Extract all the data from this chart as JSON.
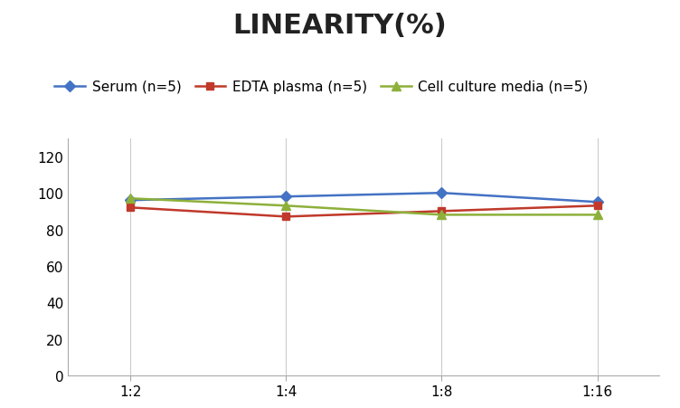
{
  "title": "LINEARITY(%)",
  "x_labels": [
    "1:2",
    "1:4",
    "1:8",
    "1:16"
  ],
  "series": [
    {
      "label": "Serum (n=5)",
      "values": [
        96,
        98,
        100,
        95
      ],
      "color": "#4472C4",
      "marker": "D",
      "markersize": 6
    },
    {
      "label": "EDTA plasma (n=5)",
      "values": [
        92,
        87,
        90,
        93
      ],
      "color": "#C0392B",
      "marker": "s",
      "markersize": 6
    },
    {
      "label": "Cell culture media (n=5)",
      "values": [
        97,
        93,
        88,
        88
      ],
      "color": "#8DB03A",
      "marker": "^",
      "markersize": 7
    }
  ],
  "ylim": [
    0,
    130
  ],
  "yticks": [
    0,
    20,
    40,
    60,
    80,
    100,
    120
  ],
  "background_color": "#ffffff",
  "title_fontsize": 22,
  "legend_fontsize": 11,
  "tick_fontsize": 11,
  "grid_color": "#cccccc",
  "spine_color": "#aaaaaa"
}
